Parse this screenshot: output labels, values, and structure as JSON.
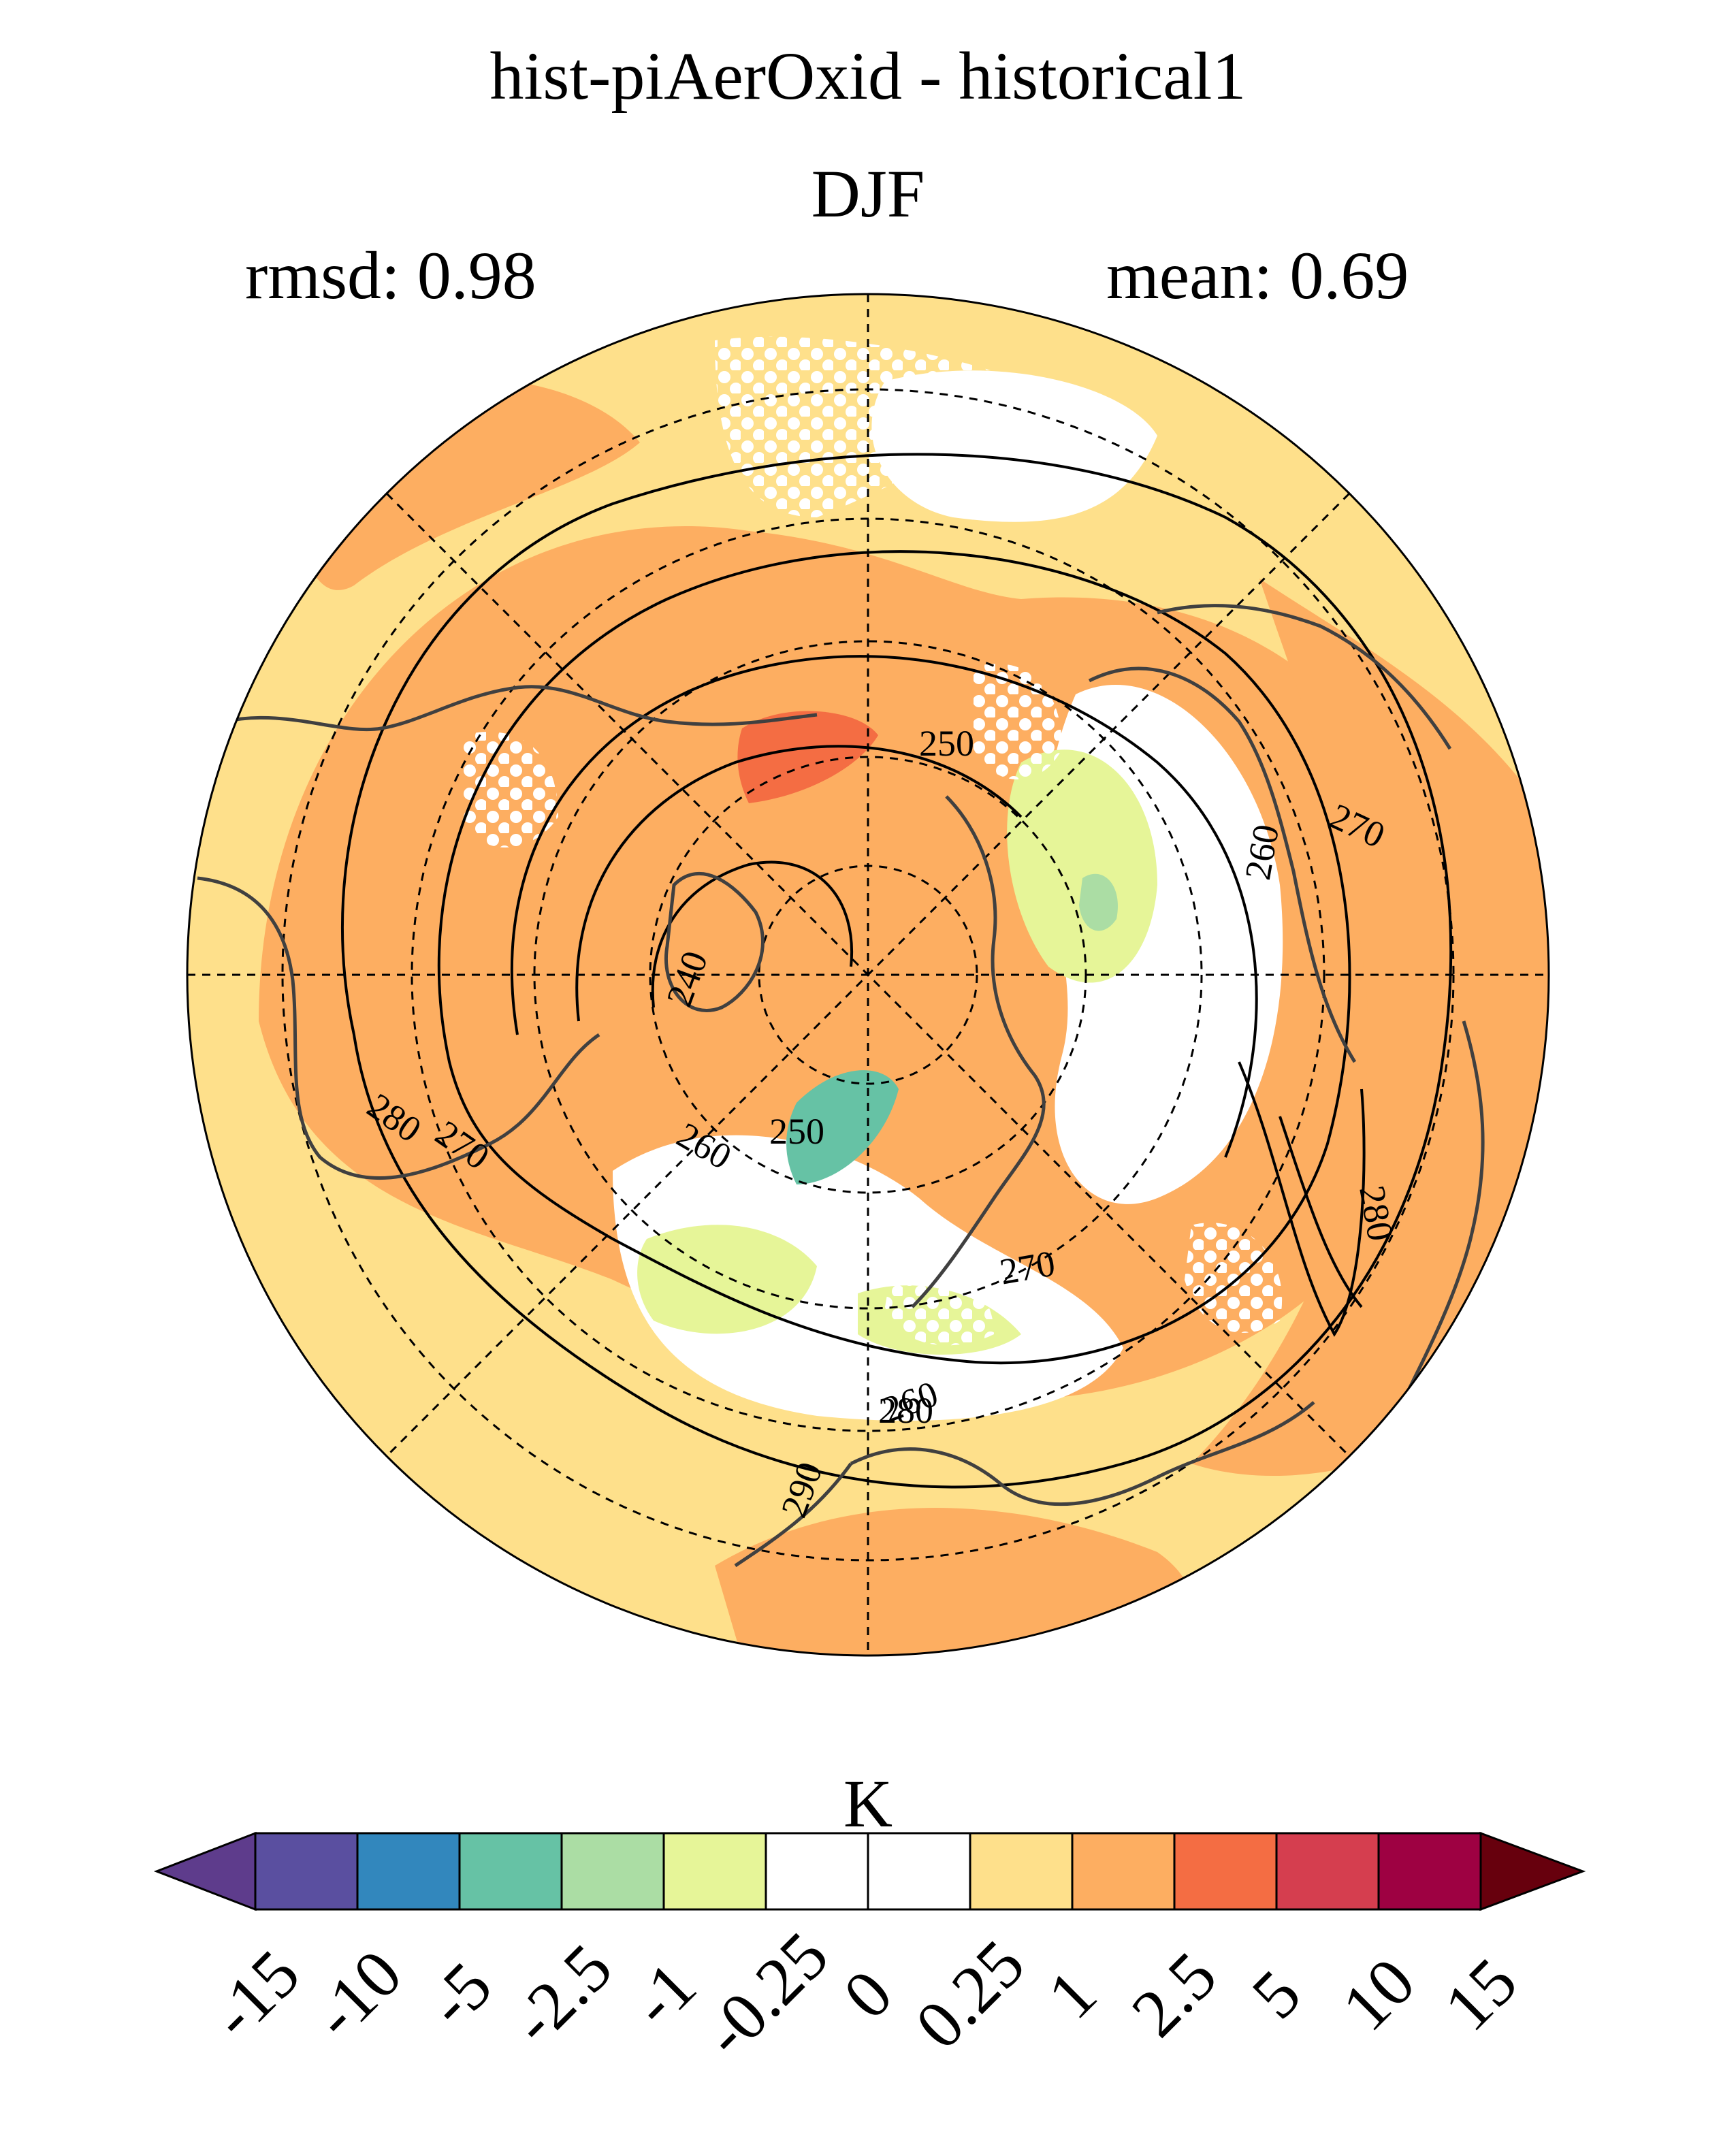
{
  "title": "hist-piAerOxid - historical1",
  "subtitle": "DJF",
  "stats": {
    "rmsd": "rmsd: 0.98",
    "mean": "mean: 0.69"
  },
  "projection": "north polar stereographic",
  "stippling": "white dots",
  "contour_labels": [
    "250",
    "260",
    "270",
    "240",
    "280",
    "270",
    "260",
    "250",
    "260",
    "270",
    "280",
    "280",
    "290"
  ],
  "colorbar": {
    "units": "K",
    "levels": [
      "-15",
      "-10",
      "-5",
      "-2.5",
      "-1",
      "-0.25",
      "0",
      "0.25",
      "1",
      "2.5",
      "5",
      "10",
      "15"
    ],
    "colors": [
      "#5e3c8c",
      "#5a4fa0",
      "#3287bd",
      "#66c2a5",
      "#abdda4",
      "#e6f598",
      "#ffffff",
      "#ffffff",
      "#fee08b",
      "#fdae61",
      "#f46d43",
      "#d53e4f",
      "#9e0142",
      "#67000d"
    ]
  }
}
